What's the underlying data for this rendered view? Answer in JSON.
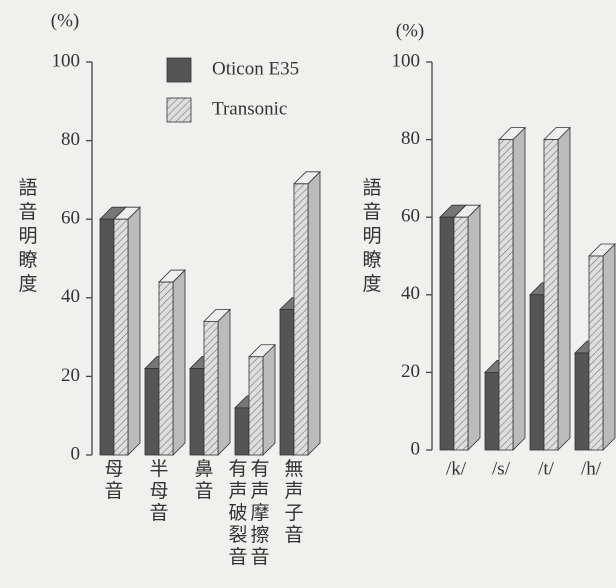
{
  "chart_data": [
    {
      "type": "bar3d",
      "unit_label": "(%)",
      "ylabel": "語音明瞭度",
      "categories": [
        "母音",
        "半母音",
        "鼻音",
        [
          "有声破裂音",
          "有声摩擦音"
        ],
        "無声子音"
      ],
      "series": [
        {
          "name": "Oticon E35",
          "color": "#555555",
          "values": [
            60,
            22,
            22,
            12,
            37
          ]
        },
        {
          "name": "Transonic",
          "color": "#d8d8d8",
          "hatch": true,
          "values": [
            60,
            44,
            34,
            25,
            69
          ]
        }
      ],
      "ylim": [
        0,
        100
      ],
      "yticks": [
        0,
        20,
        40,
        60,
        80,
        100
      ]
    },
    {
      "type": "bar3d",
      "unit_label": "(%)",
      "ylabel": "語音明瞭度",
      "categories": [
        "/k/",
        "/s/",
        "/t/",
        "/h/"
      ],
      "series": [
        {
          "color": "#555555",
          "values": [
            60,
            20,
            40,
            25
          ]
        },
        {
          "color": "#d8d8d8",
          "hatch": true,
          "values": [
            60,
            80,
            80,
            50
          ]
        }
      ],
      "ylim": [
        0,
        100
      ],
      "yticks": [
        0,
        20,
        40,
        60,
        80,
        100
      ]
    }
  ]
}
